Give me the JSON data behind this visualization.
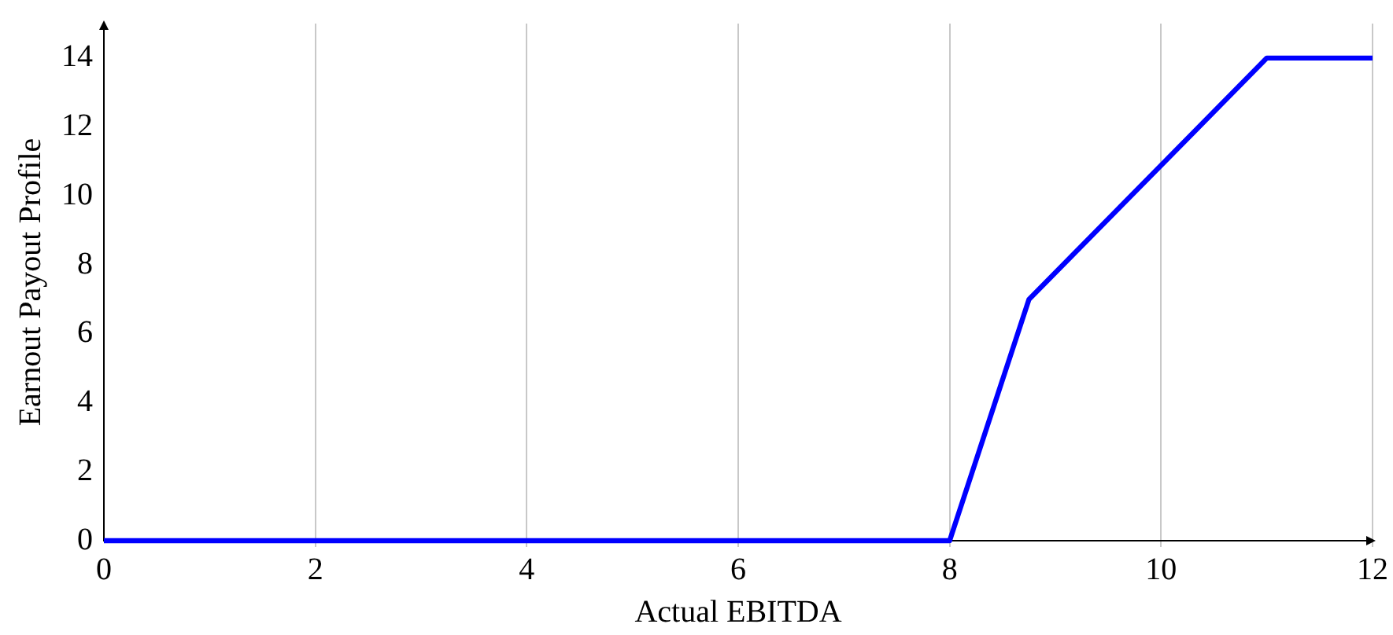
{
  "chart_data": {
    "type": "line",
    "xlabel": "Actual EBITDA",
    "ylabel": "Earnout Payout Profile",
    "x": [
      0,
      8,
      8.75,
      11,
      12
    ],
    "series": [
      {
        "color": "#0000ff",
        "values": [
          0,
          0,
          7,
          14,
          14
        ]
      }
    ],
    "xlim": [
      0,
      12
    ],
    "xticks": [
      0,
      2,
      4,
      6,
      8,
      10,
      12
    ],
    "ylim": [
      0,
      15
    ],
    "yticks": [
      0,
      2,
      4,
      6,
      8,
      10,
      12,
      14
    ],
    "grid": "x",
    "legend": false,
    "marker": "none",
    "line_style": "solid"
  }
}
